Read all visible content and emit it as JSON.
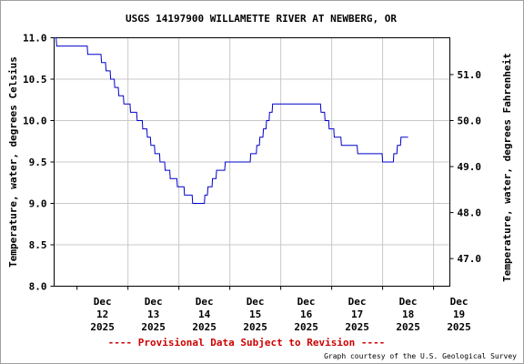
{
  "chart_data": {
    "type": "line",
    "title": "USGS 14197900 WILLAMETTE RIVER AT NEWBERG, OR",
    "ylabel_left": "Temperature, water, degrees Celsius",
    "ylabel_right": "Temperature, water, degrees Fahrenheit",
    "ylim": [
      8.0,
      11.0
    ],
    "y_ticks": [
      "8.0",
      "8.5",
      "9.0",
      "9.5",
      "10.0",
      "10.5",
      "11.0"
    ],
    "y_ticks_right": [
      "47.0",
      "48.0",
      "49.0",
      "50.0",
      "51.0"
    ],
    "xlim": [
      -0.45,
      7.32
    ],
    "x_tick_labels": [
      {
        "month": "Dec",
        "day": "12",
        "year": "2025"
      },
      {
        "month": "Dec",
        "day": "13",
        "year": "2025"
      },
      {
        "month": "Dec",
        "day": "14",
        "year": "2025"
      },
      {
        "month": "Dec",
        "day": "15",
        "year": "2025"
      },
      {
        "month": "Dec",
        "day": "16",
        "year": "2025"
      },
      {
        "month": "Dec",
        "day": "17",
        "year": "2025"
      },
      {
        "month": "Dec",
        "day": "18",
        "year": "2025"
      },
      {
        "month": "Dec",
        "day": "19",
        "year": "2025"
      }
    ],
    "grid": true,
    "line_color": "#0000cc",
    "series": [
      {
        "x": [
          -0.45,
          -0.41,
          -0.4,
          0.2,
          0.21,
          0.47,
          0.48,
          0.56,
          0.57,
          0.65,
          0.66,
          0.73,
          0.74,
          0.81,
          0.82,
          0.91,
          0.92,
          1.04,
          1.05,
          1.17,
          1.18,
          1.28,
          1.29,
          1.37,
          1.38,
          1.44,
          1.45,
          1.52,
          1.53,
          1.62,
          1.63,
          1.72,
          1.73,
          1.82,
          1.83,
          1.96,
          1.97,
          2.1,
          2.11,
          2.26,
          2.27,
          2.5,
          2.51,
          2.56,
          2.57,
          2.65,
          2.66,
          2.73,
          2.74,
          2.9,
          2.91,
          3.4,
          3.41,
          3.52,
          3.53,
          3.58,
          3.59,
          3.65,
          3.66,
          3.71,
          3.72,
          3.77,
          3.78,
          3.83,
          3.84,
          3.9,
          3.91,
          4.02,
          4.03,
          4.78,
          4.79,
          4.86,
          4.87,
          4.94,
          4.95,
          5.04,
          5.05,
          5.18,
          5.19,
          5.5,
          5.51,
          5.7,
          5.71,
          5.99,
          6.0,
          6.04,
          6.05,
          6.21,
          6.22,
          6.28,
          6.29,
          6.35,
          6.36,
          6.5
        ],
        "y": [
          11.0,
          11.0,
          10.9,
          10.9,
          10.8,
          10.8,
          10.7,
          10.7,
          10.6,
          10.6,
          10.5,
          10.5,
          10.4,
          10.4,
          10.3,
          10.3,
          10.2,
          10.2,
          10.1,
          10.1,
          10.0,
          10.0,
          9.9,
          9.9,
          9.8,
          9.8,
          9.7,
          9.7,
          9.6,
          9.6,
          9.5,
          9.5,
          9.4,
          9.4,
          9.3,
          9.3,
          9.2,
          9.2,
          9.1,
          9.1,
          9.0,
          9.0,
          9.1,
          9.1,
          9.2,
          9.2,
          9.3,
          9.3,
          9.4,
          9.4,
          9.5,
          9.5,
          9.6,
          9.6,
          9.7,
          9.7,
          9.8,
          9.8,
          9.9,
          9.9,
          10.0,
          10.0,
          10.1,
          10.1,
          10.2,
          10.2,
          10.2,
          10.2,
          10.2,
          10.2,
          10.1,
          10.1,
          10.0,
          10.0,
          9.9,
          9.9,
          9.8,
          9.8,
          9.7,
          9.7,
          9.6,
          9.6,
          9.6,
          9.6,
          9.5,
          9.5,
          9.5,
          9.5,
          9.6,
          9.6,
          9.7,
          9.7,
          9.8,
          9.8
        ]
      }
    ]
  },
  "footer": {
    "provisional": "---- Provisional Data Subject to Revision ----",
    "credit": "Graph courtesy of the U.S. Geological Survey"
  }
}
